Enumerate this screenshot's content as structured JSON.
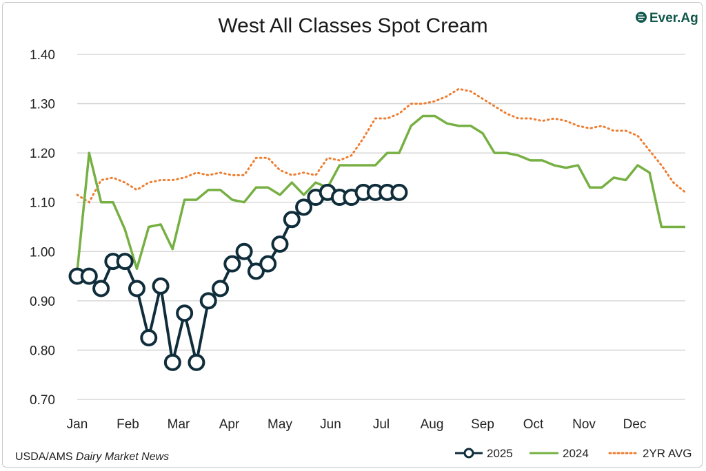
{
  "chart_data": {
    "type": "line",
    "title": "West All Classes Spot Cream",
    "xlabel": "",
    "ylabel": "",
    "ylim": [
      0.7,
      1.4
    ],
    "yticks": [
      "0.70",
      "0.80",
      "0.90",
      "1.00",
      "1.10",
      "1.20",
      "1.30",
      "1.40"
    ],
    "month_labels": [
      "Jan",
      "Feb",
      "Mar",
      "Apr",
      "May",
      "Jun",
      "Jul",
      "Aug",
      "Sep",
      "Oct",
      "Nov",
      "Dec"
    ],
    "grid": "horizontal",
    "legend_position": "bottom-right",
    "series": [
      {
        "name": "2025",
        "color": "#0f2d3b",
        "style": "line-with-circle-markers",
        "x": [
          0,
          1,
          2,
          3,
          4,
          5,
          6,
          7,
          8,
          9,
          10,
          11,
          12,
          13,
          14,
          15,
          16,
          17,
          18,
          19,
          20,
          21,
          22,
          23,
          24,
          25,
          26,
          27
        ],
        "values": [
          0.95,
          0.95,
          0.925,
          0.98,
          0.98,
          0.925,
          0.825,
          0.93,
          0.775,
          0.875,
          0.775,
          0.9,
          0.925,
          0.975,
          1.0,
          0.96,
          0.975,
          1.015,
          1.065,
          1.09,
          1.11,
          1.12,
          1.11,
          1.11,
          1.12,
          1.12,
          1.12,
          1.12
        ]
      },
      {
        "name": "2024",
        "color": "#76b043",
        "style": "solid",
        "x": [
          0,
          1,
          2,
          3,
          4,
          5,
          6,
          7,
          8,
          9,
          10,
          11,
          12,
          13,
          14,
          15,
          16,
          17,
          18,
          19,
          20,
          21,
          22,
          23,
          24,
          25,
          26,
          27,
          28,
          29,
          30,
          31,
          32,
          33,
          34,
          35,
          36,
          37,
          38,
          39,
          40,
          41,
          42,
          43,
          44,
          45,
          46,
          47,
          48,
          49,
          50,
          51
        ],
        "values": [
          0.96,
          1.2,
          1.1,
          1.1,
          1.045,
          0.965,
          1.05,
          1.055,
          1.005,
          1.105,
          1.105,
          1.125,
          1.125,
          1.105,
          1.1,
          1.13,
          1.13,
          1.115,
          1.14,
          1.115,
          1.14,
          1.13,
          1.175,
          1.175,
          1.175,
          1.175,
          1.2,
          1.2,
          1.255,
          1.275,
          1.275,
          1.26,
          1.255,
          1.255,
          1.24,
          1.2,
          1.2,
          1.195,
          1.185,
          1.185,
          1.175,
          1.17,
          1.175,
          1.13,
          1.13,
          1.15,
          1.145,
          1.175,
          1.16,
          1.05,
          1.05,
          1.05
        ]
      },
      {
        "name": "2YR AVG",
        "color": "#ee7d31",
        "style": "dotted",
        "x": [
          0,
          1,
          2,
          3,
          4,
          5,
          6,
          7,
          8,
          9,
          10,
          11,
          12,
          13,
          14,
          15,
          16,
          17,
          18,
          19,
          20,
          21,
          22,
          23,
          24,
          25,
          26,
          27,
          28,
          29,
          30,
          31,
          32,
          33,
          34,
          35,
          36,
          37,
          38,
          39,
          40,
          41,
          42,
          43,
          44,
          45,
          46,
          47,
          48,
          49,
          50,
          51
        ],
        "values": [
          1.115,
          1.1,
          1.145,
          1.15,
          1.14,
          1.125,
          1.14,
          1.145,
          1.145,
          1.15,
          1.16,
          1.155,
          1.16,
          1.155,
          1.155,
          1.19,
          1.19,
          1.165,
          1.155,
          1.16,
          1.155,
          1.19,
          1.185,
          1.195,
          1.23,
          1.27,
          1.27,
          1.28,
          1.3,
          1.3,
          1.305,
          1.315,
          1.33,
          1.325,
          1.31,
          1.295,
          1.28,
          1.27,
          1.27,
          1.265,
          1.27,
          1.265,
          1.255,
          1.25,
          1.255,
          1.245,
          1.245,
          1.235,
          1.205,
          1.175,
          1.14,
          1.12
        ]
      }
    ]
  },
  "source": {
    "prefix": "USDA/AMS",
    "italic": "Dairy Market News"
  },
  "logo": {
    "text": "Ever.Ag",
    "color": "#10574a"
  }
}
